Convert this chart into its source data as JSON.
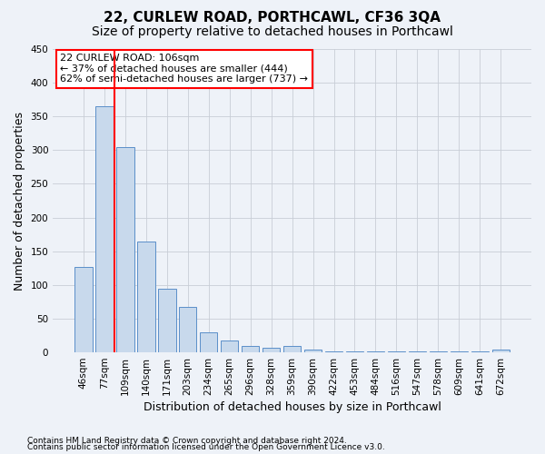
{
  "title": "22, CURLEW ROAD, PORTHCAWL, CF36 3QA",
  "subtitle": "Size of property relative to detached houses in Porthcawl",
  "xlabel": "Distribution of detached houses by size in Porthcawl",
  "ylabel": "Number of detached properties",
  "bar_values": [
    127,
    365,
    305,
    165,
    95,
    68,
    30,
    18,
    9,
    7,
    9,
    4,
    1,
    1,
    1,
    1,
    1,
    1,
    1,
    1,
    4
  ],
  "categories": [
    "46sqm",
    "77sqm",
    "109sqm",
    "140sqm",
    "171sqm",
    "203sqm",
    "234sqm",
    "265sqm",
    "296sqm",
    "328sqm",
    "359sqm",
    "390sqm",
    "422sqm",
    "453sqm",
    "484sqm",
    "516sqm",
    "547sqm",
    "578sqm",
    "609sqm",
    "641sqm",
    "672sqm"
  ],
  "bar_color": "#c8d9ec",
  "bar_edge_color": "#5b8fc9",
  "red_line_x": 1.5,
  "annotation_line1": "22 CURLEW ROAD: 106sqm",
  "annotation_line2": "← 37% of detached houses are smaller (444)",
  "annotation_line3": "62% of semi-detached houses are larger (737) →",
  "ylim": [
    0,
    450
  ],
  "yticks": [
    0,
    50,
    100,
    150,
    200,
    250,
    300,
    350,
    400,
    450
  ],
  "footnote1": "Contains HM Land Registry data © Crown copyright and database right 2024.",
  "footnote2": "Contains public sector information licensed under the Open Government Licence v3.0.",
  "background_color": "#eef2f8",
  "grid_color": "#c8cdd6",
  "annotation_box_color": "white",
  "annotation_box_edge": "red",
  "title_fontsize": 11,
  "subtitle_fontsize": 10,
  "axis_label_fontsize": 9,
  "tick_fontsize": 7.5,
  "annotation_fontsize": 8
}
